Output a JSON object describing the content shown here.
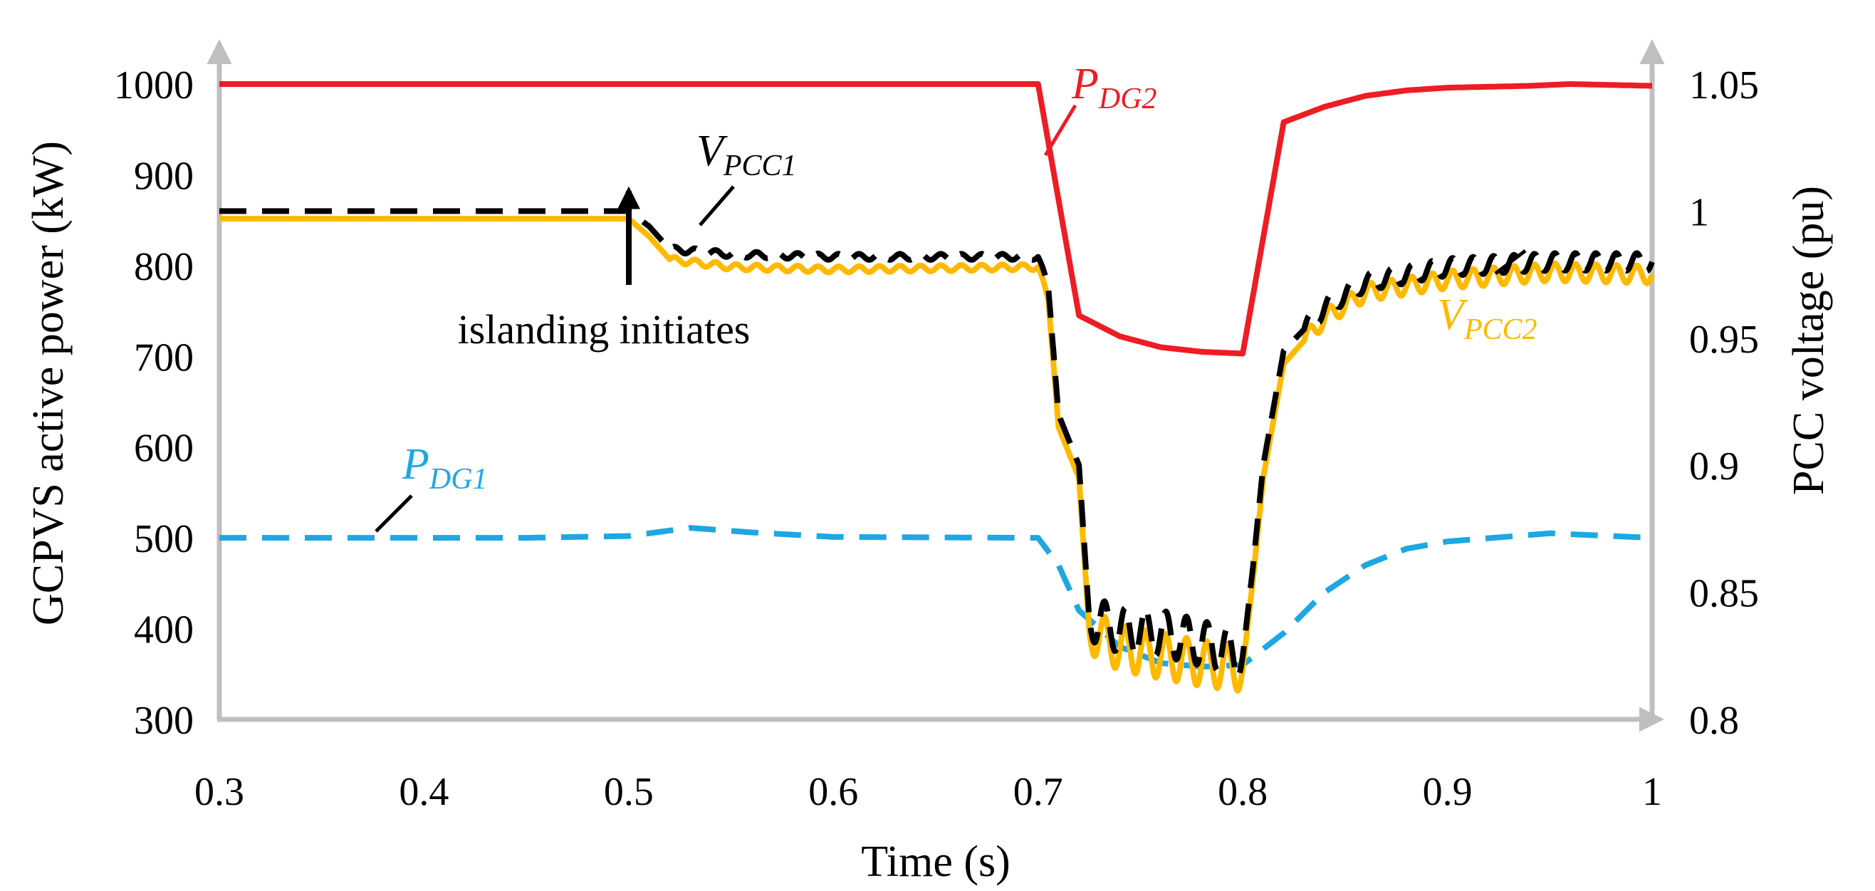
{
  "chart_data": {
    "type": "line",
    "xlabel": "Time (s)",
    "ylabel_left": "GCPVS active power (kW)",
    "ylabel_right": "PCC voltage (pu)",
    "xlim": [
      0.3,
      1.0
    ],
    "ylim_left": [
      300,
      1000
    ],
    "ylim_right": [
      0.8,
      1.05
    ],
    "x_ticks": [
      "0.3",
      "0.4",
      "0.5",
      "0.6",
      "0.7",
      "0.8",
      "0.9",
      "1"
    ],
    "y_left_ticks": [
      "300",
      "400",
      "500",
      "600",
      "700",
      "800",
      "900",
      "1000"
    ],
    "y_right_ticks": [
      "0.8",
      "0.85",
      "0.9",
      "0.95",
      "1",
      "1.05"
    ],
    "grid": false,
    "series": [
      {
        "name": "P_DG2",
        "label_main": "P",
        "label_sub": "DG2",
        "axis": "left",
        "color": "#ee1c24",
        "dash": "solid",
        "points": [
          [
            0.3,
            1000
          ],
          [
            0.5,
            1000
          ],
          [
            0.7,
            1000
          ],
          [
            0.72,
            745
          ],
          [
            0.74,
            722
          ],
          [
            0.76,
            710
          ],
          [
            0.78,
            705
          ],
          [
            0.8,
            703
          ],
          [
            0.82,
            958
          ],
          [
            0.84,
            975
          ],
          [
            0.86,
            987
          ],
          [
            0.88,
            993
          ],
          [
            0.9,
            996
          ],
          [
            0.94,
            998
          ],
          [
            0.96,
            1000
          ],
          [
            0.98,
            999
          ],
          [
            1.0,
            998
          ]
        ]
      },
      {
        "name": "P_DG1",
        "label_main": "P",
        "label_sub": "DG1",
        "axis": "left",
        "color": "#1ea7e1",
        "dash": "dashed",
        "points": [
          [
            0.3,
            500
          ],
          [
            0.38,
            500
          ],
          [
            0.45,
            500
          ],
          [
            0.5,
            502
          ],
          [
            0.53,
            511
          ],
          [
            0.56,
            506
          ],
          [
            0.6,
            501
          ],
          [
            0.7,
            500
          ],
          [
            0.71,
            470
          ],
          [
            0.72,
            420
          ],
          [
            0.74,
            380
          ],
          [
            0.76,
            362
          ],
          [
            0.78,
            358
          ],
          [
            0.8,
            360
          ],
          [
            0.82,
            395
          ],
          [
            0.84,
            440
          ],
          [
            0.86,
            470
          ],
          [
            0.88,
            488
          ],
          [
            0.9,
            496
          ],
          [
            0.95,
            505
          ],
          [
            1.0,
            500
          ]
        ]
      },
      {
        "name": "V_PCC1",
        "label_main": "V",
        "label_sub": "PCC1",
        "axis": "right",
        "color": "#000000",
        "dash": "dashed",
        "ripple": true,
        "points": [
          [
            0.3,
            1.0
          ],
          [
            0.5,
            1.0
          ],
          [
            0.51,
            0.994
          ],
          [
            0.52,
            0.985
          ],
          [
            0.55,
            0.983
          ],
          [
            0.6,
            0.982
          ],
          [
            0.7,
            0.982
          ],
          [
            0.705,
            0.97
          ],
          [
            0.71,
            0.92
          ],
          [
            0.72,
            0.9
          ],
          [
            0.725,
            0.84
          ],
          [
            0.74,
            0.835
          ],
          [
            0.76,
            0.834
          ],
          [
            0.78,
            0.83
          ],
          [
            0.8,
            0.825
          ],
          [
            0.805,
            0.86
          ],
          [
            0.81,
            0.9
          ],
          [
            0.82,
            0.945
          ],
          [
            0.84,
            0.962
          ],
          [
            0.86,
            0.972
          ],
          [
            0.9,
            0.978
          ],
          [
            0.95,
            0.98
          ],
          [
            1.0,
            0.98
          ]
        ]
      },
      {
        "name": "V_PCC2",
        "label_main": "V",
        "label_sub": "PCC2",
        "axis": "right",
        "color": "#ffb900",
        "dash": "solid",
        "ripple": true,
        "points": [
          [
            0.3,
            0.997
          ],
          [
            0.5,
            0.997
          ],
          [
            0.51,
            0.99
          ],
          [
            0.52,
            0.981
          ],
          [
            0.55,
            0.978
          ],
          [
            0.6,
            0.977
          ],
          [
            0.7,
            0.978
          ],
          [
            0.705,
            0.965
          ],
          [
            0.71,
            0.915
          ],
          [
            0.72,
            0.895
          ],
          [
            0.725,
            0.835
          ],
          [
            0.74,
            0.828
          ],
          [
            0.76,
            0.825
          ],
          [
            0.78,
            0.822
          ],
          [
            0.8,
            0.82
          ],
          [
            0.805,
            0.855
          ],
          [
            0.81,
            0.895
          ],
          [
            0.82,
            0.94
          ],
          [
            0.84,
            0.958
          ],
          [
            0.86,
            0.968
          ],
          [
            0.9,
            0.973
          ],
          [
            0.95,
            0.976
          ],
          [
            1.0,
            0.975
          ]
        ]
      }
    ],
    "annotations": [
      {
        "text": "islanding initiates",
        "x": 0.5,
        "y_left": 900
      }
    ]
  }
}
